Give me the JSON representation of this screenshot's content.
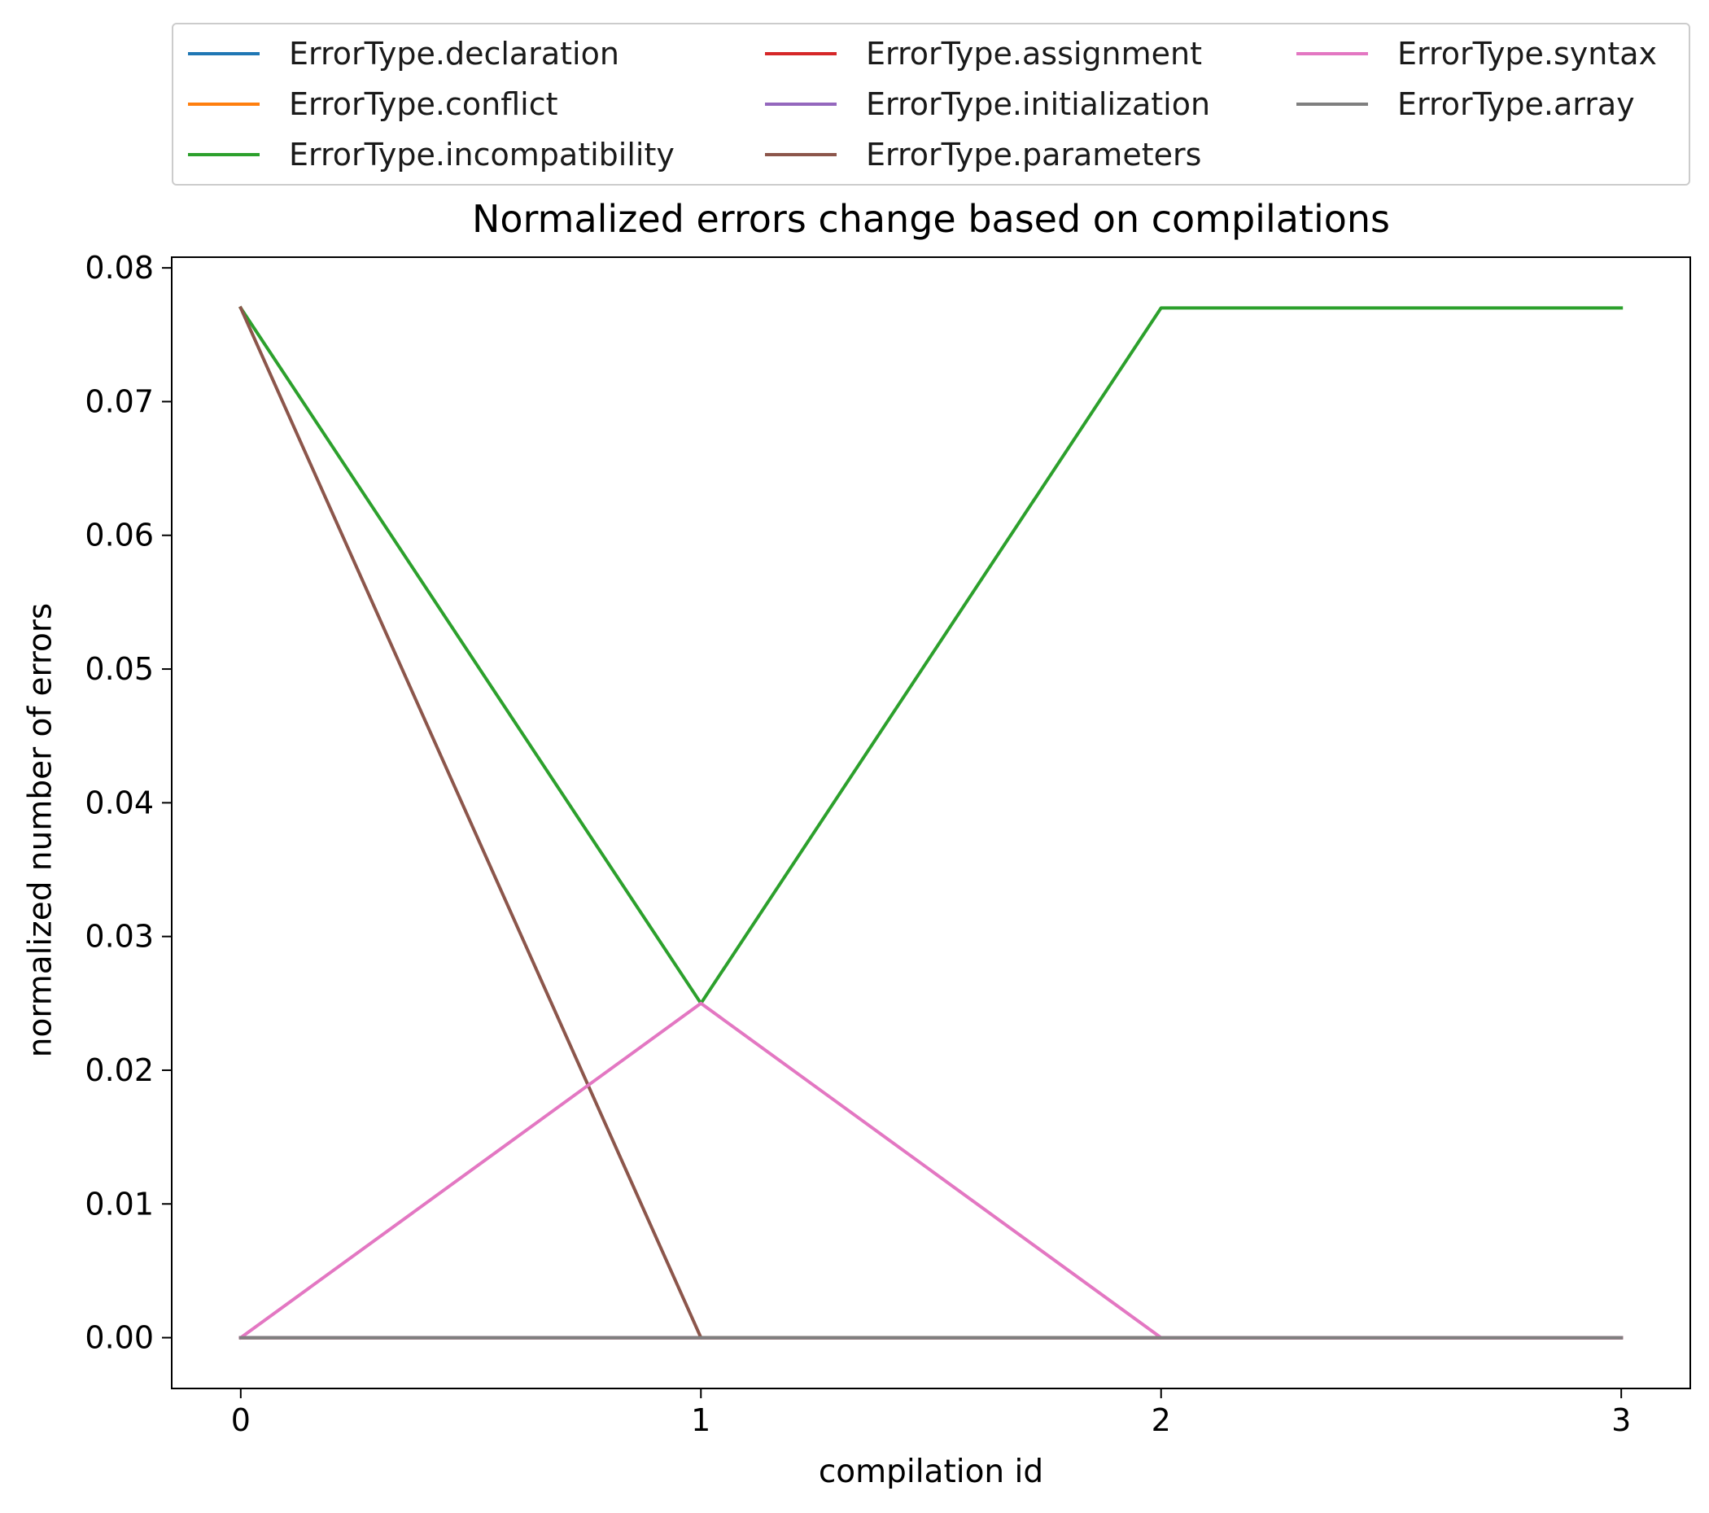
{
  "chart_data": {
    "type": "line",
    "title": "Normalized errors change based on compilations",
    "xlabel": "compilation id",
    "ylabel": "normalized number of errors",
    "x": [
      0,
      1,
      2,
      3
    ],
    "xticks": [
      "0",
      "1",
      "2",
      "3"
    ],
    "yticks": [
      "0.00",
      "0.01",
      "0.02",
      "0.03",
      "0.04",
      "0.05",
      "0.06",
      "0.07",
      "0.08"
    ],
    "ylim": [
      -0.0038,
      0.0808
    ],
    "xlim": [
      -0.15,
      3.15
    ],
    "grid": false,
    "legend_position": "top (above plot)",
    "series": [
      {
        "name": "ErrorType.declaration",
        "color": "#1f77b4",
        "values": [
          0,
          0,
          0,
          0
        ]
      },
      {
        "name": "ErrorType.conflict",
        "color": "#ff7f0e",
        "values": [
          0,
          0,
          0,
          0
        ]
      },
      {
        "name": "ErrorType.incompatibility",
        "color": "#2ca02c",
        "values": [
          0.077,
          0.025,
          0.077,
          0.077
        ]
      },
      {
        "name": "ErrorType.assignment",
        "color": "#d62728",
        "values": [
          0,
          0,
          0,
          0
        ]
      },
      {
        "name": "ErrorType.initialization",
        "color": "#9467bd",
        "values": [
          0,
          0,
          0,
          0
        ]
      },
      {
        "name": "ErrorType.parameters",
        "color": "#8c564b",
        "values": [
          0.077,
          0,
          0,
          0
        ]
      },
      {
        "name": "ErrorType.syntax",
        "color": "#e377c2",
        "values": [
          0,
          0.025,
          0,
          0
        ]
      },
      {
        "name": "ErrorType.array",
        "color": "#7f7f7f",
        "values": [
          0,
          0,
          0,
          0
        ]
      }
    ]
  }
}
